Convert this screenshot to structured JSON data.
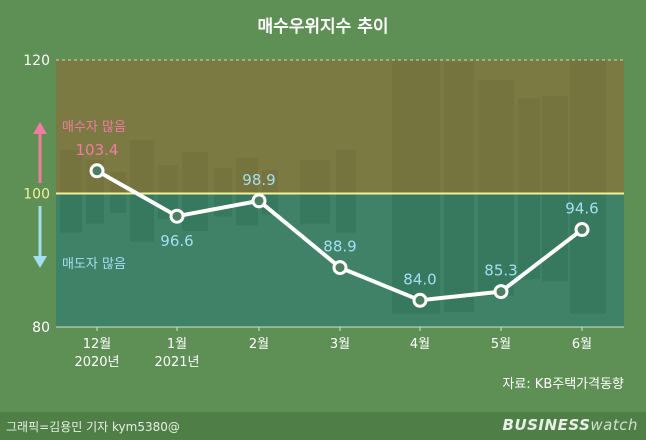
{
  "chart_data": {
    "type": "line",
    "title": "매수우위지수 추이",
    "categories": [
      "12월\n2020년",
      "1월\n2021년",
      "2월",
      "3월",
      "4월",
      "5월",
      "6월"
    ],
    "values": [
      103.4,
      96.6,
      98.9,
      88.9,
      84.0,
      85.3,
      94.6
    ],
    "data_labels": [
      "103.4",
      "96.6",
      "98.9",
      "88.9",
      "84.0",
      "85.3",
      "94.6"
    ],
    "ylim": [
      80,
      120
    ],
    "yticks": [
      "80",
      "100",
      "120"
    ],
    "reference_line": 100,
    "annotations": {
      "upper": "매수자 많음",
      "lower": "매도자 많음"
    },
    "source": "자료: KB주택가격동향",
    "grid": false
  },
  "colors": {
    "background": "#5e8f55",
    "upper_zone": "#7c7a43",
    "lower_zone": "#3f8267",
    "line": "#ffffff",
    "reference": "#f3ef9a",
    "highlight_label": "#f07ca0",
    "label": "#a4dff0",
    "tick": "#ffffff"
  },
  "footer": {
    "credit": "그래픽=김용민 기자 kym5380@",
    "brand_bold": "BUSINESS",
    "brand_light": "watch"
  }
}
